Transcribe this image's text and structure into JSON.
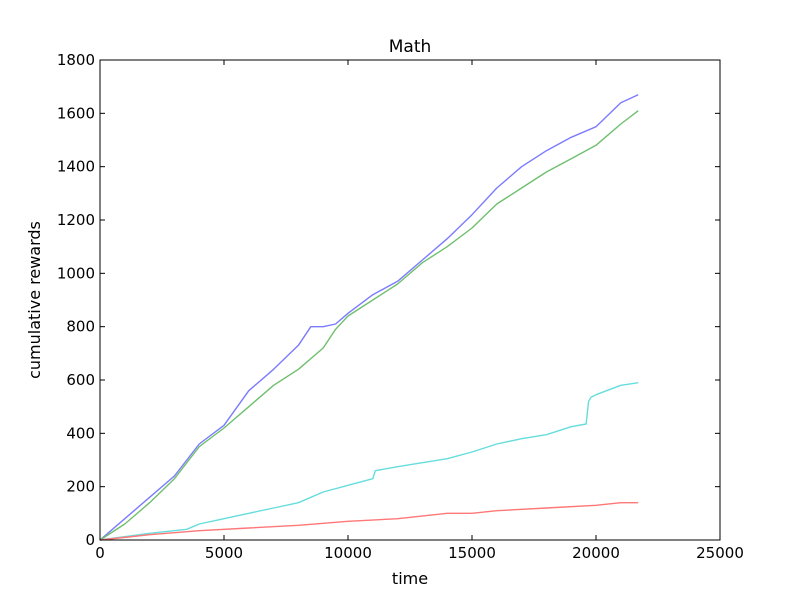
{
  "chart_data": {
    "type": "line",
    "title": "Math",
    "xlabel": "time",
    "ylabel": "cumulative rewards",
    "xlim": [
      0,
      25000
    ],
    "ylim": [
      0,
      1800
    ],
    "xticks": [
      0,
      5000,
      10000,
      15000,
      20000,
      25000
    ],
    "xtick_labels": [
      "0",
      "5000",
      "10000",
      "15000",
      "20000",
      "25000"
    ],
    "yticks": [
      0,
      200,
      400,
      600,
      800,
      1000,
      1200,
      1400,
      1600,
      1800
    ],
    "ytick_labels": [
      "0",
      "200",
      "400",
      "600",
      "800",
      "1000",
      "1200",
      "1400",
      "1600",
      "1800"
    ],
    "grid": false,
    "legend": "none",
    "series": [
      {
        "color": "#7b7bff",
        "x": [
          0,
          1000,
          2000,
          3000,
          4000,
          5000,
          6000,
          7000,
          8000,
          8500,
          9000,
          9500,
          10000,
          11000,
          12000,
          13000,
          14000,
          15000,
          16000,
          17000,
          18000,
          19000,
          20000,
          21000,
          21700
        ],
        "y": [
          0,
          80,
          160,
          240,
          360,
          430,
          560,
          640,
          730,
          800,
          800,
          810,
          850,
          920,
          970,
          1050,
          1130,
          1220,
          1320,
          1400,
          1460,
          1510,
          1550,
          1640,
          1670
        ]
      },
      {
        "color": "#6fbf6f",
        "x": [
          0,
          1000,
          2000,
          3000,
          4000,
          5000,
          6000,
          7000,
          8000,
          9000,
          9500,
          10000,
          11000,
          12000,
          13000,
          14000,
          15000,
          16000,
          17000,
          18000,
          19000,
          20000,
          21000,
          21700
        ],
        "y": [
          0,
          60,
          140,
          230,
          350,
          420,
          500,
          580,
          640,
          720,
          790,
          840,
          900,
          960,
          1040,
          1100,
          1170,
          1260,
          1320,
          1380,
          1430,
          1480,
          1560,
          1610
        ]
      },
      {
        "color": "#66dddd",
        "x": [
          0,
          2000,
          3500,
          4000,
          5000,
          6000,
          7000,
          8000,
          9000,
          10000,
          11000,
          11100,
          12000,
          13000,
          14000,
          15000,
          16000,
          17000,
          18000,
          19000,
          19600,
          19700,
          19800,
          20000,
          21000,
          21700
        ],
        "y": [
          0,
          25,
          40,
          60,
          80,
          100,
          120,
          140,
          180,
          205,
          230,
          260,
          275,
          290,
          305,
          330,
          360,
          380,
          395,
          425,
          435,
          520,
          535,
          545,
          580,
          590
        ]
      },
      {
        "color": "#ff7777",
        "x": [
          0,
          2000,
          4000,
          6000,
          8000,
          10000,
          12000,
          14000,
          15000,
          16000,
          18000,
          20000,
          21000,
          21700
        ],
        "y": [
          0,
          20,
          35,
          45,
          55,
          70,
          80,
          100,
          100,
          110,
          120,
          130,
          140,
          140
        ]
      }
    ]
  }
}
